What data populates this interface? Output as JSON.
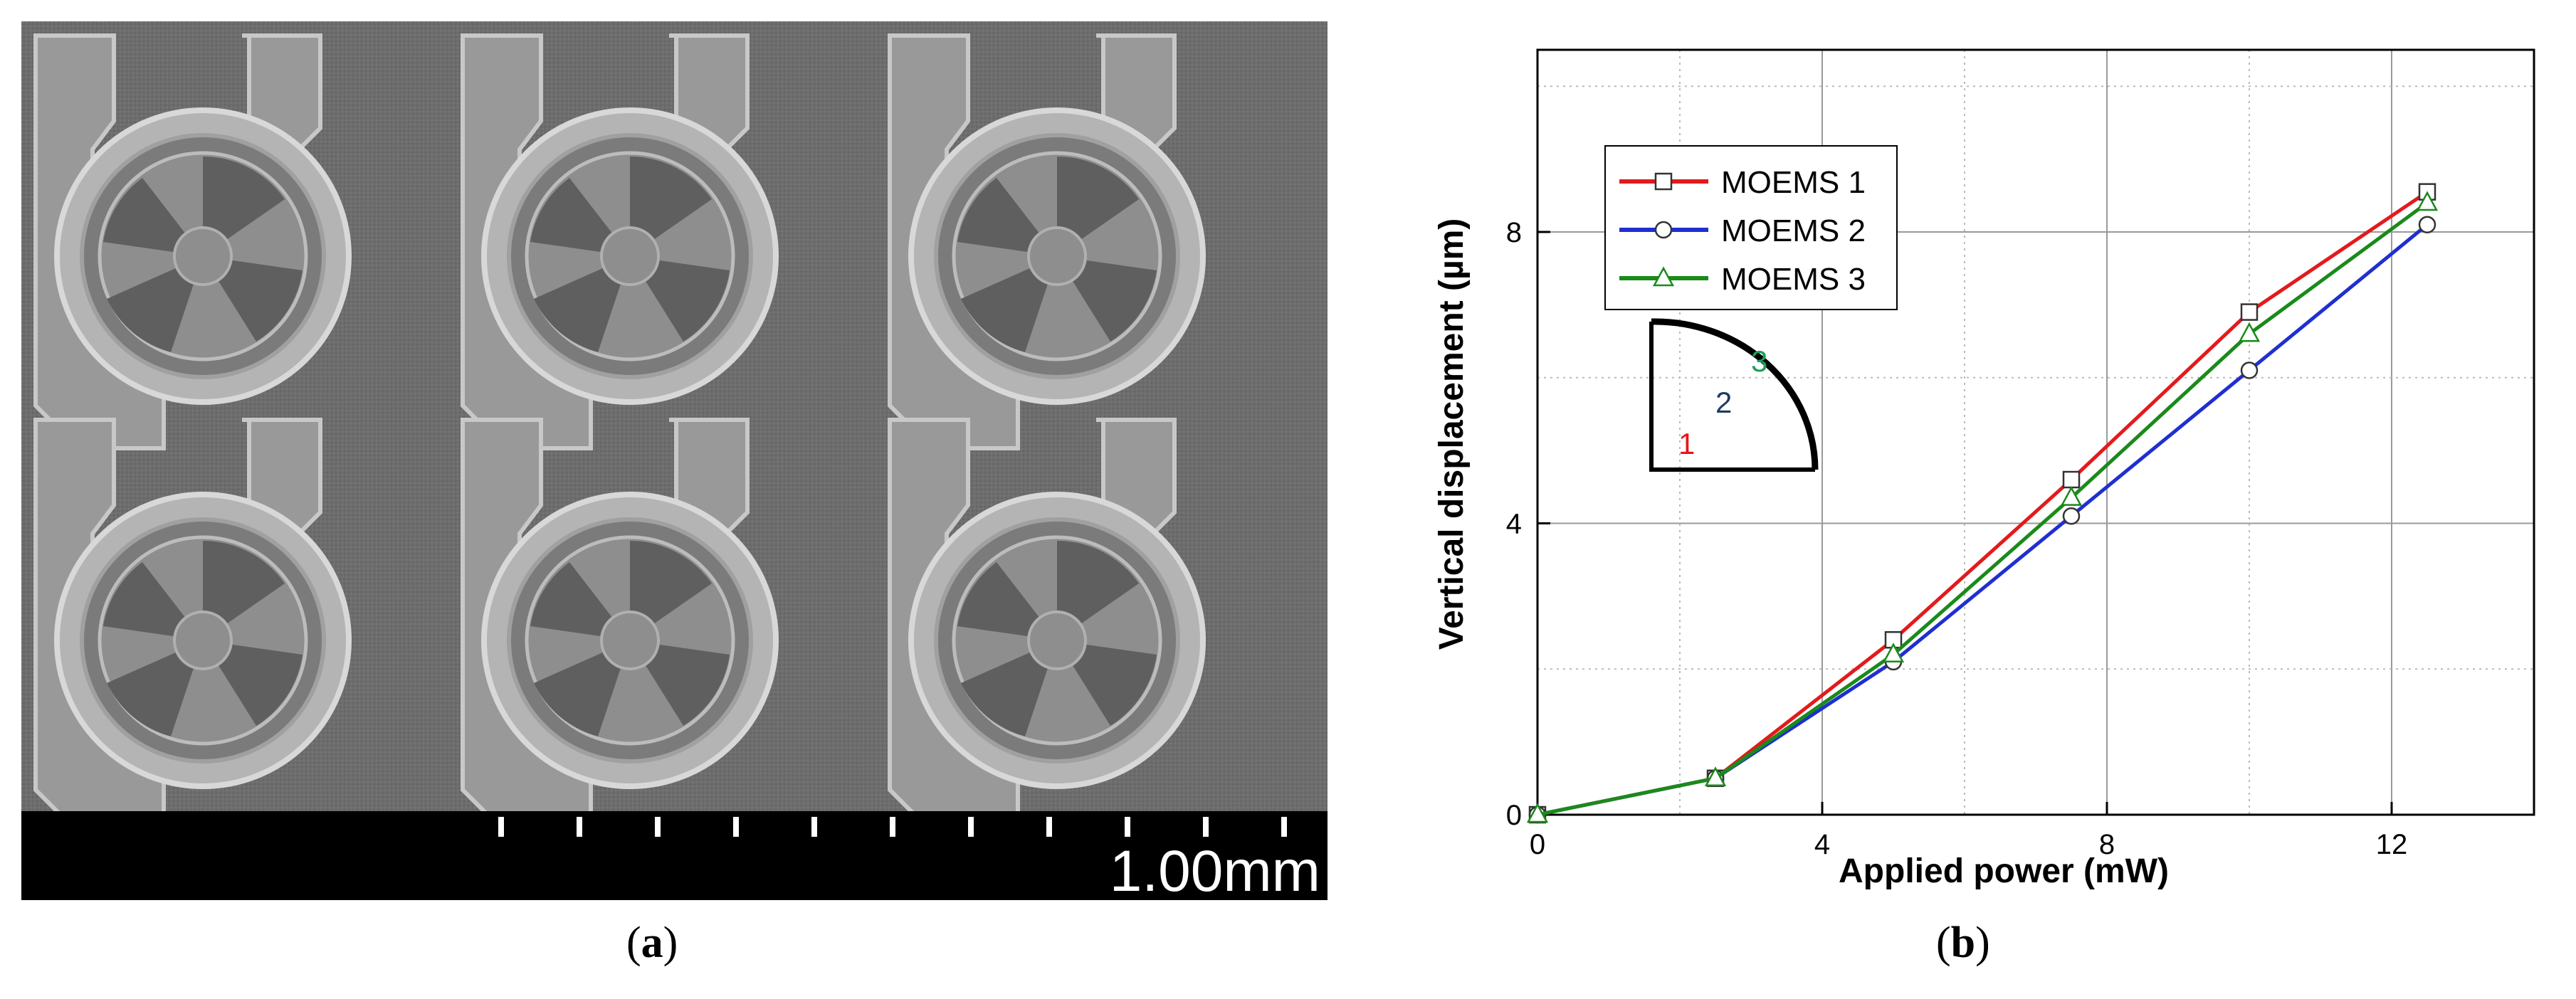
{
  "panel_a": {
    "caption_open": "(",
    "caption_letter": "a",
    "caption_close": ")",
    "scale_bar_label": "1.00mm",
    "image_subject": "SEM micrograph of MOEMS wheel array"
  },
  "panel_b": {
    "caption_open": "(",
    "caption_letter": "b",
    "caption_close": ")",
    "inset_labels": [
      "1",
      "2",
      "3"
    ],
    "inset_colors": [
      "#e8141b",
      "#1f3a5f",
      "#1aa05a"
    ]
  },
  "chart_data": {
    "type": "line",
    "title": "",
    "xlabel": "Applied power  (mW)",
    "ylabel": "Vertical displacement (µm)",
    "xlim": [
      0,
      14
    ],
    "ylim": [
      0,
      10.5
    ],
    "xticks": [
      0,
      4,
      8,
      12
    ],
    "yticks": [
      0,
      4,
      8
    ],
    "grid": true,
    "legend_position": "top-left",
    "series": [
      {
        "name": "MOEMS 1",
        "color": "#e31a1c",
        "marker": "square",
        "x": [
          0,
          2.5,
          5,
          7.5,
          10,
          12.5
        ],
        "y": [
          0,
          0.5,
          2.4,
          4.6,
          6.9,
          8.55
        ]
      },
      {
        "name": "MOEMS 2",
        "color": "#1f2fd0",
        "marker": "circle",
        "x": [
          0,
          2.5,
          5,
          7.5,
          10,
          12.5
        ],
        "y": [
          0,
          0.5,
          2.1,
          4.1,
          6.1,
          8.1
        ]
      },
      {
        "name": "MOEMS 3",
        "color": "#1a8a1a",
        "marker": "triangle",
        "x": [
          0,
          2.5,
          5,
          7.5,
          10,
          12.5
        ],
        "y": [
          0,
          0.5,
          2.2,
          4.35,
          6.6,
          8.4
        ]
      }
    ]
  }
}
